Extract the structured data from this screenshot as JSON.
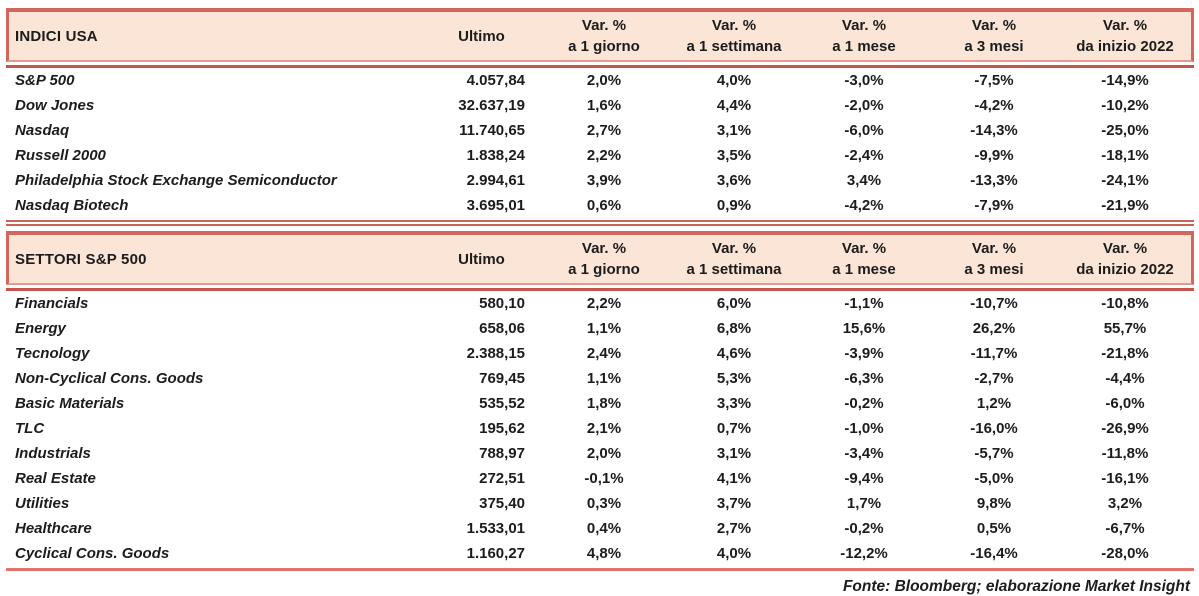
{
  "colors": {
    "header_bg": "#fbe5d7",
    "border_main": "#d2655d",
    "border_light": "#e59a8d",
    "border_dark": "#c4544c",
    "bottom_line": "#e4716a",
    "text": "#1c1c1c"
  },
  "tables": [
    {
      "title": "INDICI USA",
      "ultimo_header": "Ultimo",
      "var_header": "Var. %",
      "period_headers": [
        "a 1 giorno",
        "a 1 settimana",
        "a 1 mese",
        "a 3 mesi",
        "da inizio 2022"
      ],
      "rows": [
        {
          "name": "S&P 500",
          "ultimo": "4.057,84",
          "vars": [
            "2,0%",
            "4,0%",
            "-3,0%",
            "-7,5%",
            "-14,9%"
          ]
        },
        {
          "name": "Dow Jones",
          "ultimo": "32.637,19",
          "vars": [
            "1,6%",
            "4,4%",
            "-2,0%",
            "-4,2%",
            "-10,2%"
          ]
        },
        {
          "name": "Nasdaq",
          "ultimo": "11.740,65",
          "vars": [
            "2,7%",
            "3,1%",
            "-6,0%",
            "-14,3%",
            "-25,0%"
          ]
        },
        {
          "name": "Russell 2000",
          "ultimo": "1.838,24",
          "vars": [
            "2,2%",
            "3,5%",
            "-2,4%",
            "-9,9%",
            "-18,1%"
          ]
        },
        {
          "name": "Philadelphia Stock Exchange Semiconductor",
          "ultimo": "2.994,61",
          "vars": [
            "3,9%",
            "3,6%",
            "3,4%",
            "-13,3%",
            "-24,1%"
          ]
        },
        {
          "name": "Nasdaq Biotech",
          "ultimo": "3.695,01",
          "vars": [
            "0,6%",
            "0,9%",
            "-4,2%",
            "-7,9%",
            "-21,9%"
          ]
        }
      ]
    },
    {
      "title": "SETTORI S&P 500",
      "ultimo_header": "Ultimo",
      "var_header": "Var. %",
      "period_headers": [
        "a 1 giorno",
        "a 1 settimana",
        "a 1 mese",
        "a 3 mesi",
        "da inizio 2022"
      ],
      "rows": [
        {
          "name": "Financials",
          "ultimo": "580,10",
          "vars": [
            "2,2%",
            "6,0%",
            "-1,1%",
            "-10,7%",
            "-10,8%"
          ]
        },
        {
          "name": "Energy",
          "ultimo": "658,06",
          "vars": [
            "1,1%",
            "6,8%",
            "15,6%",
            "26,2%",
            "55,7%"
          ]
        },
        {
          "name": "Tecnology",
          "ultimo": "2.388,15",
          "vars": [
            "2,4%",
            "4,6%",
            "-3,9%",
            "-11,7%",
            "-21,8%"
          ]
        },
        {
          "name": "Non-Cyclical Cons. Goods",
          "ultimo": "769,45",
          "vars": [
            "1,1%",
            "5,3%",
            "-6,3%",
            "-2,7%",
            "-4,4%"
          ]
        },
        {
          "name": "Basic Materials",
          "ultimo": "535,52",
          "vars": [
            "1,8%",
            "3,3%",
            "-0,2%",
            "1,2%",
            "-6,0%"
          ]
        },
        {
          "name": "TLC",
          "ultimo": "195,62",
          "vars": [
            "2,1%",
            "0,7%",
            "-1,0%",
            "-16,0%",
            "-26,9%"
          ]
        },
        {
          "name": "Industrials",
          "ultimo": "788,97",
          "vars": [
            "2,0%",
            "3,1%",
            "-3,4%",
            "-5,7%",
            "-11,8%"
          ]
        },
        {
          "name": "Real Estate",
          "ultimo": "272,51",
          "vars": [
            "-0,1%",
            "4,1%",
            "-9,4%",
            "-5,0%",
            "-16,1%"
          ]
        },
        {
          "name": "Utilities",
          "ultimo": "375,40",
          "vars": [
            "0,3%",
            "3,7%",
            "1,7%",
            "9,8%",
            "3,2%"
          ]
        },
        {
          "name": "Healthcare",
          "ultimo": "1.533,01",
          "vars": [
            "0,4%",
            "2,7%",
            "-0,2%",
            "0,5%",
            "-6,7%"
          ]
        },
        {
          "name": "Cyclical Cons. Goods",
          "ultimo": "1.160,27",
          "vars": [
            "4,8%",
            "4,0%",
            "-12,2%",
            "-16,4%",
            "-28,0%"
          ]
        }
      ]
    }
  ],
  "footer": {
    "text": "Fonte: Bloomberg; elaborazione Market Insight"
  }
}
